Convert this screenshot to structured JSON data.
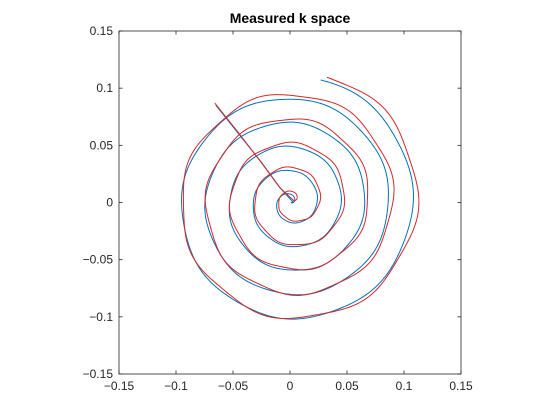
{
  "chart_data": {
    "type": "line",
    "title": "Measured k space",
    "xlabel": "",
    "ylabel": "",
    "xlim": [
      -0.15,
      0.15
    ],
    "ylim": [
      -0.15,
      0.15
    ],
    "x_ticks": [
      -0.15,
      -0.1,
      -0.05,
      0,
      0.05,
      0.1,
      0.15
    ],
    "y_ticks": [
      -0.15,
      -0.1,
      -0.05,
      0,
      0.05,
      0.1,
      0.15
    ],
    "x_tick_labels": [
      "−0.15",
      "−0.1",
      "−0.05",
      "0",
      "0.05",
      "0.1",
      "0.15"
    ],
    "y_tick_labels": [
      "−0.15",
      "−0.1",
      "−0.05",
      "0",
      "0.05",
      "0.1",
      "0.15"
    ],
    "grid": false,
    "legend": "none",
    "series": [
      {
        "color": "#0072BD",
        "spiral": {
          "turns": 5.3,
          "r_max": 0.111,
          "center": [
            0.001,
            0.0
          ],
          "theta_offset": -0.55,
          "noise": 0.0008
        },
        "lead_in": [
          [
            -0.065,
            0.085
          ],
          [
            -0.045,
            0.06
          ],
          [
            -0.025,
            0.035
          ],
          [
            -0.008,
            0.012
          ],
          [
            0.003,
            0.0
          ]
        ]
      },
      {
        "color": "#D62728",
        "spiral": {
          "turns": 5.3,
          "r_max": 0.113,
          "center": [
            0.003,
            0.002
          ],
          "theta_offset": -0.58,
          "noise": 0.0018
        },
        "lead_in": [
          [
            -0.066,
            0.087
          ],
          [
            -0.046,
            0.062
          ],
          [
            -0.026,
            0.036
          ],
          [
            -0.009,
            0.013
          ],
          [
            0.004,
            0.001
          ]
        ]
      }
    ]
  }
}
